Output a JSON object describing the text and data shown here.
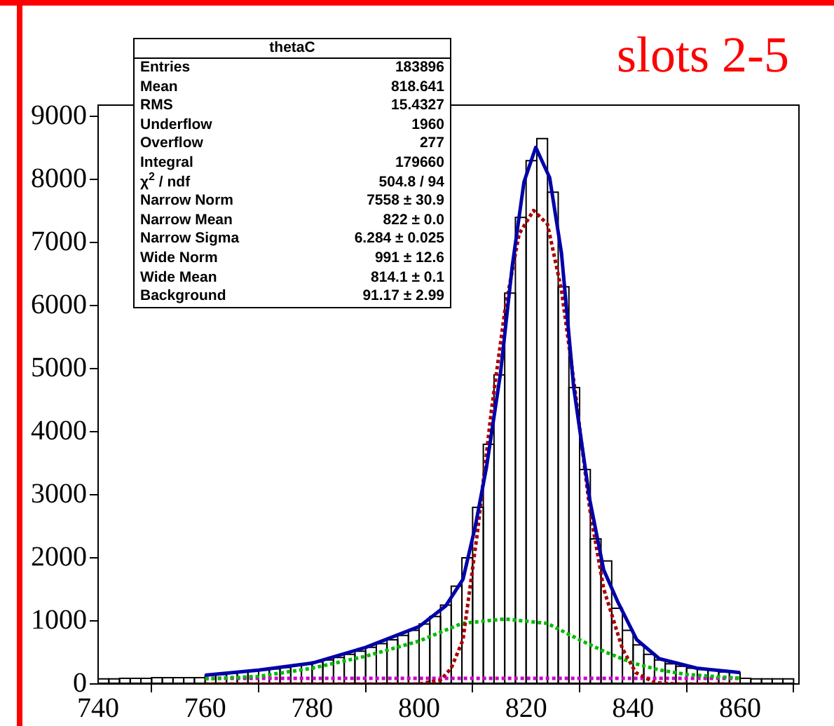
{
  "chart_data": {
    "type": "histogram",
    "title": "slots 2-5",
    "bins": [
      740,
      742,
      744,
      746,
      748,
      750,
      752,
      754,
      756,
      758,
      760,
      762,
      764,
      766,
      768,
      770,
      772,
      774,
      776,
      778,
      780,
      782,
      784,
      786,
      788,
      790,
      792,
      794,
      796,
      798,
      800,
      802,
      804,
      806,
      808,
      810,
      812,
      814,
      816,
      818,
      820,
      822,
      824,
      826,
      828,
      830,
      832,
      834,
      836,
      838,
      840,
      842,
      844,
      846,
      848,
      850,
      852,
      854,
      856,
      858,
      860,
      862,
      864,
      866,
      868,
      870
    ],
    "values": [
      80,
      80,
      90,
      90,
      90,
      100,
      100,
      100,
      100,
      100,
      140,
      150,
      170,
      190,
      200,
      220,
      240,
      260,
      290,
      320,
      350,
      380,
      420,
      470,
      520,
      580,
      640,
      700,
      770,
      850,
      950,
      1070,
      1250,
      1550,
      2000,
      2800,
      3800,
      4900,
      6200,
      7400,
      8300,
      8650,
      7800,
      6300,
      4700,
      3400,
      2300,
      1950,
      1200,
      850,
      620,
      470,
      380,
      320,
      280,
      250,
      230,
      210,
      190,
      180,
      90,
      80,
      80,
      80,
      80
    ],
    "color": "#000000",
    "series": [
      {
        "type": "line",
        "color": "#0000aa",
        "line_style": "solid",
        "x": [
          760,
          770,
          780,
          790,
          800,
          805,
          808.2,
          810.5,
          812.6,
          815.2,
          817.4,
          819.6,
          821.8,
          824.4,
          826.6,
          828.9,
          831.9,
          834.5,
          837.2,
          840.7,
          844.9,
          851.9,
          860
        ],
        "values": [
          140,
          220,
          330,
          580,
          910,
          1240,
          1660,
          2500,
          3440,
          4920,
          6620,
          7960,
          8510,
          8030,
          6840,
          4700,
          2920,
          1810,
          1290,
          700,
          400,
          250,
          180
        ]
      },
      {
        "type": "line",
        "color": "#aa0000",
        "line_style": "dotted",
        "x": [
          760,
          800,
          804,
          806,
          808.2,
          810.9,
          813.5,
          816.1,
          818.7,
          821.4,
          824,
          826.6,
          829.2,
          831.9,
          834.5,
          838,
          840.5,
          844,
          848,
          860
        ],
        "values": [
          0,
          0,
          60,
          250,
          700,
          2400,
          4330,
          5960,
          7140,
          7510,
          7290,
          6250,
          4620,
          2770,
          1510,
          560,
          180,
          20,
          0,
          0
        ]
      },
      {
        "type": "line",
        "color": "#00bb00",
        "line_style": "dotted",
        "x": [
          760,
          770,
          780,
          790,
          800,
          808,
          816,
          824,
          830,
          835,
          840,
          845,
          850,
          860
        ],
        "values": [
          80,
          120,
          250,
          440,
          680,
          960,
          1030,
          960,
          700,
          500,
          330,
          220,
          150,
          90
        ]
      },
      {
        "type": "line",
        "color": "#cc00cc",
        "line_style": "dotted",
        "x": [
          760,
          860
        ],
        "values": [
          90,
          90
        ]
      }
    ],
    "xlim": [
      740,
      871
    ],
    "xticks": [
      740,
      760,
      780,
      800,
      820,
      840,
      860
    ],
    "ylim": [
      0,
      9180
    ],
    "yticks": [
      0,
      1000,
      2000,
      3000,
      4000,
      5000,
      6000,
      7000,
      8000,
      9000
    ],
    "grid": false,
    "marker": "none",
    "annotations": [
      "thetaC",
      "Entries",
      "183896",
      "Mean",
      "818.641",
      "RMS",
      "15.4327",
      "Underflow",
      "1960",
      "Overflow",
      "277",
      "Integral",
      "179660",
      "χ$^{2}$ / ndf",
      "504.8 / 94",
      "Narrow Norm",
      "7558 ± 30.9",
      "Narrow Mean",
      "822 ± 0.0",
      "Narrow Sigma",
      "6.284 ± 0.025",
      "Wide Norm",
      "991 ± 12.6",
      "Wide Mean",
      "814.1 ± 0.1",
      "Background",
      "91.17 ± 2.99"
    ]
  }
}
